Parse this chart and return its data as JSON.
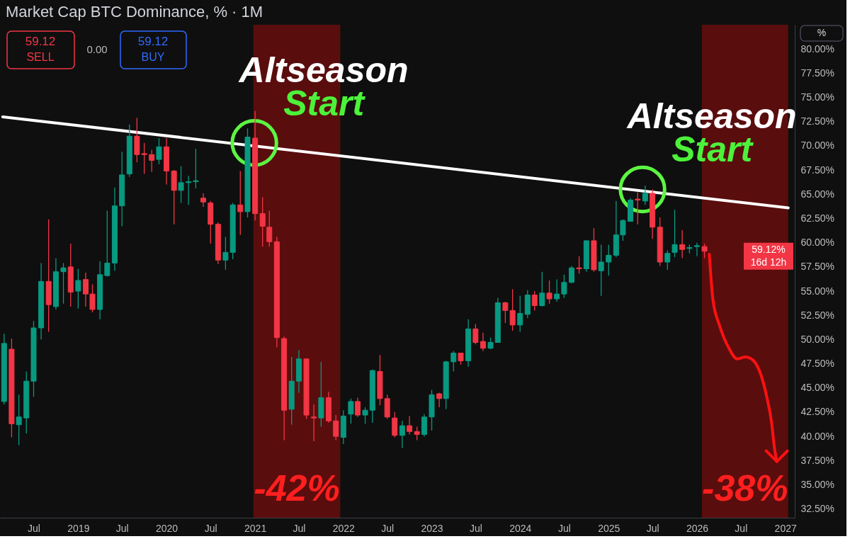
{
  "chart_data": {
    "type": "candlestick",
    "title": "Market Cap BTC Dominance, % · 1M",
    "x": [
      "2018-03",
      "2018-04",
      "2018-05",
      "2018-06",
      "2018-07",
      "2018-08",
      "2018-09",
      "2018-10",
      "2018-11",
      "2018-12",
      "2019-01",
      "2019-02",
      "2019-03",
      "2019-04",
      "2019-05",
      "2019-06",
      "2019-07",
      "2019-08",
      "2019-09",
      "2019-10",
      "2019-11",
      "2019-12",
      "2020-01",
      "2020-02",
      "2020-03",
      "2020-04",
      "2020-05",
      "2020-06",
      "2020-07",
      "2020-08",
      "2020-09",
      "2020-10",
      "2020-11",
      "2020-12",
      "2021-01",
      "2021-02",
      "2021-03",
      "2021-04",
      "2021-05",
      "2021-06",
      "2021-07",
      "2021-08",
      "2021-09",
      "2021-10",
      "2021-11",
      "2021-12",
      "2022-01",
      "2022-02",
      "2022-03",
      "2022-04",
      "2022-05",
      "2022-06",
      "2022-07",
      "2022-08",
      "2022-09",
      "2022-10",
      "2022-11",
      "2022-12",
      "2023-01",
      "2023-02",
      "2023-03",
      "2023-04",
      "2023-05",
      "2023-06",
      "2023-07",
      "2023-08",
      "2023-09",
      "2023-10",
      "2023-11",
      "2023-12",
      "2024-01",
      "2024-02",
      "2024-03",
      "2024-04",
      "2024-05",
      "2024-06",
      "2024-07",
      "2024-08",
      "2024-09",
      "2024-10",
      "2024-11",
      "2024-12",
      "2025-01",
      "2025-02",
      "2025-03",
      "2025-04",
      "2025-05",
      "2025-06",
      "2025-07",
      "2025-08",
      "2025-09",
      "2025-10",
      "2025-11",
      "2025-12",
      "2026-01",
      "2026-02"
    ],
    "ohlc": [
      [
        43.6,
        50.6,
        43.3,
        49.6
      ],
      [
        49.0,
        50.1,
        39.9,
        41.3
      ],
      [
        41.2,
        44.3,
        39.1,
        42.0
      ],
      [
        41.9,
        46.7,
        40.3,
        45.7
      ],
      [
        45.7,
        51.9,
        44.1,
        51.2
      ],
      [
        51.2,
        57.9,
        50.0,
        56.0
      ],
      [
        56.0,
        62.4,
        50.8,
        53.6
      ],
      [
        53.4,
        58.4,
        53.1,
        57.0
      ],
      [
        57.0,
        57.9,
        53.7,
        57.4
      ],
      [
        57.5,
        59.9,
        53.4,
        54.9
      ],
      [
        55.0,
        57.3,
        53.2,
        56.1
      ],
      [
        56.2,
        56.9,
        53.4,
        54.7
      ],
      [
        54.7,
        55.7,
        52.8,
        53.1
      ],
      [
        53.1,
        58.1,
        52.1,
        56.7
      ],
      [
        56.6,
        63.3,
        56.5,
        57.9
      ],
      [
        57.9,
        65.7,
        57.1,
        63.8
      ],
      [
        63.8,
        69.4,
        61.7,
        67.0
      ],
      [
        67.1,
        72.2,
        66.8,
        71.0
      ],
      [
        71.0,
        72.9,
        68.3,
        69.1
      ],
      [
        69.2,
        70.3,
        67.1,
        69.1
      ],
      [
        69.1,
        69.6,
        67.3,
        68.5
      ],
      [
        68.6,
        70.8,
        68.1,
        69.9
      ],
      [
        69.9,
        70.8,
        66.0,
        67.4
      ],
      [
        67.4,
        67.5,
        61.9,
        65.4
      ],
      [
        65.4,
        67.9,
        64.1,
        66.2
      ],
      [
        66.2,
        66.9,
        63.9,
        66.3
      ],
      [
        66.3,
        69.7,
        65.6,
        66.4
      ],
      [
        64.6,
        65.1,
        63.7,
        64.2
      ],
      [
        64.1,
        64.3,
        59.9,
        61.9
      ],
      [
        61.9,
        62.1,
        57.8,
        58.2
      ],
      [
        58.2,
        60.6,
        57.2,
        59.0
      ],
      [
        59.0,
        64.1,
        58.3,
        63.9
      ],
      [
        63.9,
        67.4,
        60.8,
        63.2
      ],
      [
        63.2,
        71.8,
        62.6,
        70.9
      ],
      [
        70.8,
        73.6,
        62.3,
        63.0
      ],
      [
        63.0,
        64.7,
        59.6,
        61.7
      ],
      [
        61.6,
        63.3,
        59.6,
        60.1
      ],
      [
        60.1,
        60.6,
        49.2,
        50.2
      ],
      [
        50.1,
        50.3,
        39.6,
        42.7
      ],
      [
        42.8,
        48.2,
        41.2,
        45.7
      ],
      [
        45.7,
        48.9,
        44.5,
        48.0
      ],
      [
        48.0,
        48.0,
        41.8,
        42.2
      ],
      [
        42.0,
        43.3,
        39.5,
        41.9
      ],
      [
        41.9,
        47.7,
        41.0,
        44.0
      ],
      [
        44.0,
        44.6,
        41.4,
        41.6
      ],
      [
        41.6,
        42.2,
        39.6,
        40.0
      ],
      [
        39.9,
        42.7,
        39.2,
        42.1
      ],
      [
        42.3,
        43.9,
        41.3,
        43.6
      ],
      [
        43.6,
        44.0,
        42.0,
        42.2
      ],
      [
        42.2,
        43.0,
        41.3,
        42.7
      ],
      [
        42.7,
        46.9,
        41.4,
        46.8
      ],
      [
        46.7,
        48.4,
        43.2,
        43.9
      ],
      [
        43.9,
        44.3,
        41.8,
        42.0
      ],
      [
        41.9,
        42.5,
        39.9,
        40.1
      ],
      [
        40.1,
        41.6,
        38.8,
        41.1
      ],
      [
        41.1,
        42.1,
        40.2,
        40.5
      ],
      [
        40.5,
        41.0,
        39.6,
        40.2
      ],
      [
        40.2,
        42.3,
        40.0,
        42.0
      ],
      [
        42.0,
        44.8,
        40.6,
        44.3
      ],
      [
        44.4,
        44.5,
        43.0,
        43.9
      ],
      [
        43.9,
        47.8,
        42.8,
        47.7
      ],
      [
        47.7,
        48.8,
        46.7,
        48.6
      ],
      [
        48.6,
        48.6,
        47.4,
        47.8
      ],
      [
        47.8,
        52.1,
        47.2,
        51.1
      ],
      [
        51.1,
        51.6,
        49.5,
        49.7
      ],
      [
        49.8,
        50.7,
        48.8,
        49.1
      ],
      [
        49.1,
        50.2,
        49.0,
        49.7
      ],
      [
        49.7,
        54.3,
        49.7,
        53.8
      ],
      [
        53.8,
        53.9,
        51.7,
        53.0
      ],
      [
        53.0,
        55.2,
        50.9,
        51.5
      ],
      [
        51.5,
        54.5,
        50.8,
        52.7
      ],
      [
        52.6,
        55.1,
        52.2,
        54.6
      ],
      [
        54.6,
        55.0,
        53.0,
        53.5
      ],
      [
        53.5,
        57.0,
        53.4,
        54.8
      ],
      [
        54.8,
        56.1,
        53.7,
        54.2
      ],
      [
        54.2,
        56.2,
        53.9,
        54.7
      ],
      [
        54.7,
        56.7,
        54.3,
        55.9
      ],
      [
        55.9,
        57.6,
        55.8,
        57.4
      ],
      [
        57.4,
        58.6,
        56.8,
        57.3
      ],
      [
        57.3,
        60.2,
        57.0,
        60.2
      ],
      [
        60.2,
        61.5,
        57.0,
        57.2
      ],
      [
        57.1,
        59.8,
        54.5,
        58.0
      ],
      [
        58.0,
        59.8,
        56.6,
        58.7
      ],
      [
        58.7,
        64.3,
        58.5,
        60.8
      ],
      [
        60.8,
        62.4,
        60.2,
        62.3
      ],
      [
        62.2,
        64.6,
        62.2,
        64.4
      ],
      [
        64.5,
        65.2,
        61.9,
        64.4
      ],
      [
        64.3,
        65.9,
        63.9,
        65.1
      ],
      [
        65.1,
        65.5,
        60.4,
        61.6
      ],
      [
        61.6,
        62.6,
        57.6,
        58.0
      ],
      [
        58.0,
        59.2,
        57.2,
        58.9
      ],
      [
        59.0,
        63.4,
        58.5,
        59.8
      ],
      [
        59.8,
        61.3,
        58.4,
        59.3
      ],
      [
        59.4,
        59.8,
        58.9,
        59.5
      ],
      [
        59.6,
        60.0,
        58.6,
        59.7
      ],
      [
        59.6,
        59.9,
        58.4,
        59.12
      ]
    ],
    "colors": [
      "#089981",
      "#f23645",
      "#089981",
      "#089981",
      "#089981",
      "#089981",
      "#f23645",
      "#089981",
      "#089981",
      "#f23645",
      "#089981",
      "#f23645",
      "#f23645",
      "#089981",
      "#089981",
      "#089981",
      "#089981",
      "#089981",
      "#f23645",
      "#f23645",
      "#f23645",
      "#089981",
      "#f23645",
      "#f23645",
      "#089981",
      "#089981",
      "#089981",
      "#f23645",
      "#f23645",
      "#f23645",
      "#089981",
      "#089981",
      "#f23645",
      "#089981",
      "#f23645",
      "#f23645",
      "#f23645",
      "#f23645",
      "#f23645",
      "#089981",
      "#089981",
      "#f23645",
      "#f23645",
      "#089981",
      "#f23645",
      "#f23645",
      "#089981",
      "#089981",
      "#f23645",
      "#089981",
      "#089981",
      "#f23645",
      "#f23645",
      "#f23645",
      "#089981",
      "#f23645",
      "#f23645",
      "#089981",
      "#089981",
      "#f23645",
      "#089981",
      "#089981",
      "#f23645",
      "#089981",
      "#f23645",
      "#f23645",
      "#089981",
      "#089981",
      "#f23645",
      "#f23645",
      "#089981",
      "#089981",
      "#f23645",
      "#089981",
      "#f23645",
      "#089981",
      "#089981",
      "#089981",
      "#f23645",
      "#089981",
      "#f23645",
      "#089981",
      "#089981",
      "#089981",
      "#089981",
      "#089981",
      "#f23645",
      "#089981",
      "#f23645",
      "#f23645",
      "#089981",
      "#089981",
      "#f23645",
      "#089981",
      "#089981",
      "#f23645"
    ],
    "series": [
      {
        "type": "line",
        "x": [
          "2018-02-23",
          "2027-01-13"
        ],
        "values": [
          73.0,
          63.6
        ],
        "color": "#ffffff"
      },
      {
        "type": "line",
        "x": [
          "2026-02-21",
          "2026-03-08",
          "2026-04-05",
          "2026-05-13",
          "2026-06-17",
          "2026-07-20",
          "2026-08-19",
          "2026-09-23",
          "2026-10-17",
          "2026-11-06",
          "2026-11-16",
          "2026-11-27"
        ],
        "values": [
          58.8,
          54.1,
          51.4,
          49.1,
          48.0,
          48.2,
          47.9,
          46.3,
          44.0,
          41.3,
          39.0,
          37.4
        ],
        "color": "#ff1111"
      }
    ],
    "bands": [
      {
        "axis": "x",
        "from": "2020-12-25",
        "to": "2021-12-19",
        "label": "-42%",
        "color": "#5a0d0d"
      },
      {
        "axis": "x",
        "from": "2026-01-21",
        "to": "2027-01-13",
        "label": "-38%",
        "color": "#5a0d0d"
      }
    ],
    "annotations": [
      {
        "text": "Altseason",
        "x": "2020-12-29",
        "y": 70.3
      },
      {
        "text": "Start",
        "x": "2020-12-29",
        "y": 70.3
      },
      {
        "text": "Altseason",
        "x": "2025-05-21",
        "y": 65.5
      },
      {
        "text": "Start",
        "x": "2025-05-21",
        "y": 65.5
      },
      "59.12",
      "SELL",
      "0.00",
      "59.12",
      "BUY",
      "%",
      "59.12%",
      "16d 12h"
    ],
    "xlim": [
      "2018-02-12",
      "2027-02-09"
    ],
    "ylim": [
      31.6,
      82.5
    ],
    "xticks": [
      {
        "value": "2018-07",
        "label": "Jul"
      },
      {
        "value": "2019-01",
        "label": "2019"
      },
      {
        "value": "2019-07",
        "label": "Jul"
      },
      {
        "value": "2020-01",
        "label": "2020"
      },
      {
        "value": "2020-07",
        "label": "Jul"
      },
      {
        "value": "2021-01",
        "label": "2021"
      },
      {
        "value": "2021-07",
        "label": "Jul"
      },
      {
        "value": "2022-01",
        "label": "2022"
      },
      {
        "value": "2022-07",
        "label": "Jul"
      },
      {
        "value": "2023-01",
        "label": "2023"
      },
      {
        "value": "2023-07",
        "label": "Jul"
      },
      {
        "value": "2024-01",
        "label": "2024"
      },
      {
        "value": "2024-07",
        "label": "Jul"
      },
      {
        "value": "2025-01",
        "label": "2025"
      },
      {
        "value": "2025-07",
        "label": "Jul"
      },
      {
        "value": "2026-01",
        "label": "2026"
      },
      {
        "value": "2026-07",
        "label": "Jul"
      },
      {
        "value": "2027-01",
        "label": "2027"
      }
    ],
    "yticks": [
      {
        "value": 32.5,
        "label": "32.50%"
      },
      {
        "value": 35,
        "label": "35.00%"
      },
      {
        "value": 37.5,
        "label": "37.50%"
      },
      {
        "value": 40,
        "label": "40.00%"
      },
      {
        "value": 42.5,
        "label": "42.50%"
      },
      {
        "value": 45,
        "label": "45.00%"
      },
      {
        "value": 47.5,
        "label": "47.50%"
      },
      {
        "value": 50,
        "label": "50.00%"
      },
      {
        "value": 52.5,
        "label": "52.50%"
      },
      {
        "value": 55,
        "label": "55.00%"
      },
      {
        "value": 57.5,
        "label": "57.50%"
      },
      {
        "value": 60,
        "label": "60.00%"
      },
      {
        "value": 62.5,
        "label": "62.50%"
      },
      {
        "value": 65,
        "label": "65.00%"
      },
      {
        "value": 67.5,
        "label": "67.50%"
      },
      {
        "value": 70,
        "label": "70.00%"
      },
      {
        "value": 72.5,
        "label": "72.50%"
      },
      {
        "value": 75,
        "label": "75.00%"
      },
      {
        "value": 77.5,
        "label": "77.50%"
      },
      {
        "value": 80,
        "label": "80.00%"
      }
    ]
  }
}
